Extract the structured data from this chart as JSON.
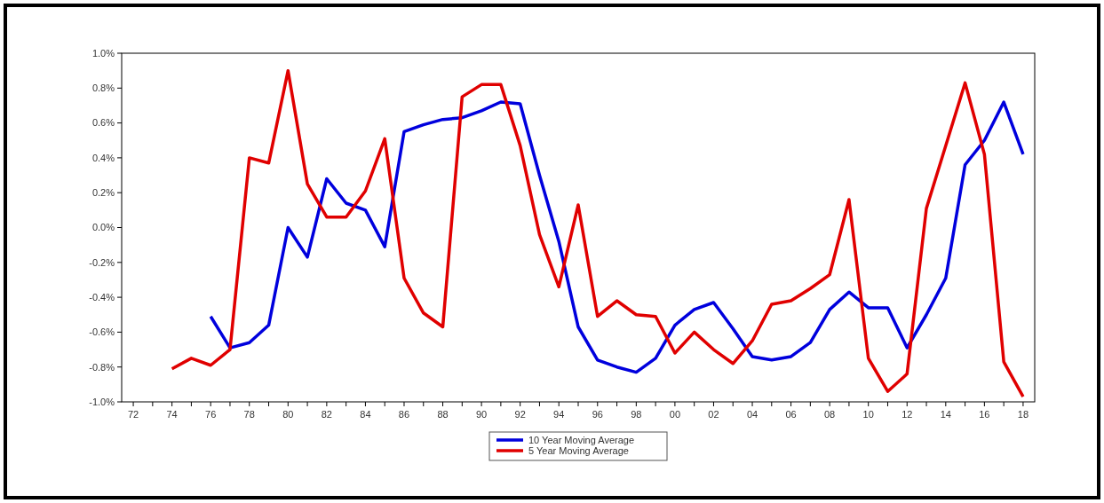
{
  "chart_data": {
    "type": "line",
    "x": [
      1974,
      1975,
      1976,
      1977,
      1978,
      1979,
      1980,
      1981,
      1982,
      1983,
      1984,
      1985,
      1986,
      1987,
      1988,
      1989,
      1990,
      1991,
      1992,
      1993,
      1994,
      1995,
      1996,
      1997,
      1998,
      1999,
      2000,
      2001,
      2002,
      2003,
      2004,
      2005,
      2006,
      2007,
      2008,
      2009,
      2010,
      2011,
      2012,
      2013,
      2014,
      2015,
      2016,
      2017,
      2018
    ],
    "series": [
      {
        "name": "10 Year Moving Average",
        "color": "#0000dd",
        "values": [
          null,
          null,
          -0.51,
          -0.69,
          -0.66,
          -0.56,
          0.0,
          -0.17,
          0.28,
          0.14,
          0.1,
          -0.11,
          0.55,
          0.59,
          0.62,
          0.63,
          0.67,
          0.72,
          0.71,
          0.3,
          -0.08,
          -0.57,
          -0.76,
          -0.8,
          -0.83,
          -0.75,
          -0.56,
          -0.47,
          -0.43,
          -0.58,
          -0.74,
          -0.76,
          -0.74,
          -0.66,
          -0.47,
          -0.37,
          -0.46,
          -0.46,
          -0.69,
          -0.5,
          -0.29,
          0.36,
          0.5,
          0.72,
          0.42
        ]
      },
      {
        "name": "5 Year Moving Average",
        "color": "#e00000",
        "values": [
          -0.81,
          -0.75,
          -0.79,
          -0.7,
          0.4,
          0.37,
          0.9,
          0.25,
          0.06,
          0.06,
          0.21,
          0.51,
          -0.29,
          -0.49,
          -0.57,
          0.75,
          0.82,
          0.82,
          0.47,
          -0.04,
          -0.34,
          0.13,
          -0.51,
          -0.42,
          -0.5,
          -0.51,
          -0.72,
          -0.6,
          -0.7,
          -0.78,
          -0.65,
          -0.44,
          -0.42,
          -0.35,
          -0.27,
          0.16,
          -0.75,
          -0.94,
          -0.84,
          0.11,
          0.47,
          0.83,
          0.42,
          -0.77,
          -0.97
        ]
      }
    ],
    "xlim": [
      1971.4,
      2018.6
    ],
    "xticks": [
      {
        "value": 1972,
        "label": "72"
      },
      {
        "value": 1973,
        "label": null
      },
      {
        "value": 1974,
        "label": "74"
      },
      {
        "value": 1975,
        "label": null
      },
      {
        "value": 1976,
        "label": "76"
      },
      {
        "value": 1977,
        "label": null
      },
      {
        "value": 1978,
        "label": "78"
      },
      {
        "value": 1979,
        "label": null
      },
      {
        "value": 1980,
        "label": "80"
      },
      {
        "value": 1981,
        "label": null
      },
      {
        "value": 1982,
        "label": "82"
      },
      {
        "value": 1983,
        "label": null
      },
      {
        "value": 1984,
        "label": "84"
      },
      {
        "value": 1985,
        "label": null
      },
      {
        "value": 1986,
        "label": "86"
      },
      {
        "value": 1987,
        "label": null
      },
      {
        "value": 1988,
        "label": "88"
      },
      {
        "value": 1989,
        "label": null
      },
      {
        "value": 1990,
        "label": "90"
      },
      {
        "value": 1991,
        "label": null
      },
      {
        "value": 1992,
        "label": "92"
      },
      {
        "value": 1993,
        "label": null
      },
      {
        "value": 1994,
        "label": "94"
      },
      {
        "value": 1995,
        "label": null
      },
      {
        "value": 1996,
        "label": "96"
      },
      {
        "value": 1997,
        "label": null
      },
      {
        "value": 1998,
        "label": "98"
      },
      {
        "value": 1999,
        "label": null
      },
      {
        "value": 2000,
        "label": "00"
      },
      {
        "value": 2001,
        "label": null
      },
      {
        "value": 2002,
        "label": "02"
      },
      {
        "value": 2003,
        "label": null
      },
      {
        "value": 2004,
        "label": "04"
      },
      {
        "value": 2005,
        "label": null
      },
      {
        "value": 2006,
        "label": "06"
      },
      {
        "value": 2007,
        "label": null
      },
      {
        "value": 2008,
        "label": "08"
      },
      {
        "value": 2009,
        "label": null
      },
      {
        "value": 2010,
        "label": "10"
      },
      {
        "value": 2011,
        "label": null
      },
      {
        "value": 2012,
        "label": "12"
      },
      {
        "value": 2013,
        "label": null
      },
      {
        "value": 2014,
        "label": "14"
      },
      {
        "value": 2015,
        "label": null
      },
      {
        "value": 2016,
        "label": "16"
      },
      {
        "value": 2017,
        "label": null
      },
      {
        "value": 2018,
        "label": "18"
      }
    ],
    "ylim": [
      -1,
      1
    ],
    "yticks": [
      {
        "value": -1,
        "label": "-1.0%"
      },
      {
        "value": -0.8,
        "label": "-0.8%"
      },
      {
        "value": -0.6,
        "label": "-0.6%"
      },
      {
        "value": -0.4,
        "label": "-0.4%"
      },
      {
        "value": -0.2,
        "label": "-0.2%"
      },
      {
        "value": 0,
        "label": "0.0%"
      },
      {
        "value": 0.2,
        "label": "0.2%"
      },
      {
        "value": 0.4,
        "label": "0.4%"
      },
      {
        "value": 0.6,
        "label": "0.6%"
      },
      {
        "value": 0.8,
        "label": "0.8%"
      },
      {
        "value": 1,
        "label": "1.0%"
      }
    ],
    "grid": false,
    "legend": "bottom",
    "line_style": "solid"
  }
}
